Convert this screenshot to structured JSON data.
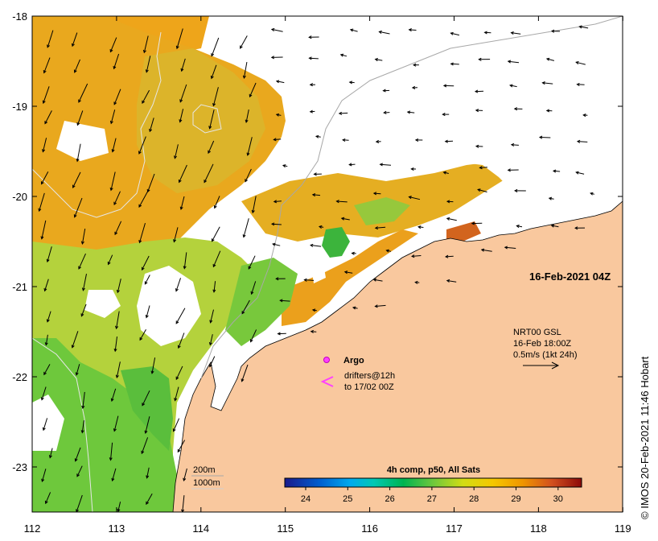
{
  "map": {
    "date_label": "16-Feb-2021 04Z",
    "lat_ticks": [
      "-18",
      "-19",
      "-20",
      "-21",
      "-22",
      "-23"
    ],
    "lon_ticks": [
      "112",
      "113",
      "114",
      "115",
      "116",
      "117",
      "118",
      "119"
    ],
    "side_credit": "© IMOS 20-Feb-2021 11:46 Hobart",
    "wind": {
      "model": "NRT00 GSL",
      "time": "16-Feb 18:00Z",
      "scale": "0.5m/s (1kt 24h)"
    },
    "argo_label": "Argo",
    "drifters_line1": "drifters@12h",
    "drifters_line2": "to 17/02 00Z",
    "isobath_200": "200m",
    "isobath_1000": "1000m",
    "colorbar": {
      "title": "4h comp, p50, All Sats",
      "ticks": [
        "24",
        "25",
        "26",
        "27",
        "28",
        "29",
        "30"
      ],
      "colors": [
        "#1a1a8c",
        "#0050c8",
        "#00a0e6",
        "#00c8c8",
        "#00b450",
        "#46c83c",
        "#96d228",
        "#dcdc14",
        "#f5c800",
        "#f0a000",
        "#e07814",
        "#c84614",
        "#a01e0a",
        "#8c0a0a"
      ]
    },
    "colors": {
      "land": "#f9c89e",
      "sst_warm": "#eea51a",
      "sst_mid": "#dcb92a",
      "sst_green": "#6ec83c",
      "sst_yellowgreen": "#b4d23c"
    }
  }
}
